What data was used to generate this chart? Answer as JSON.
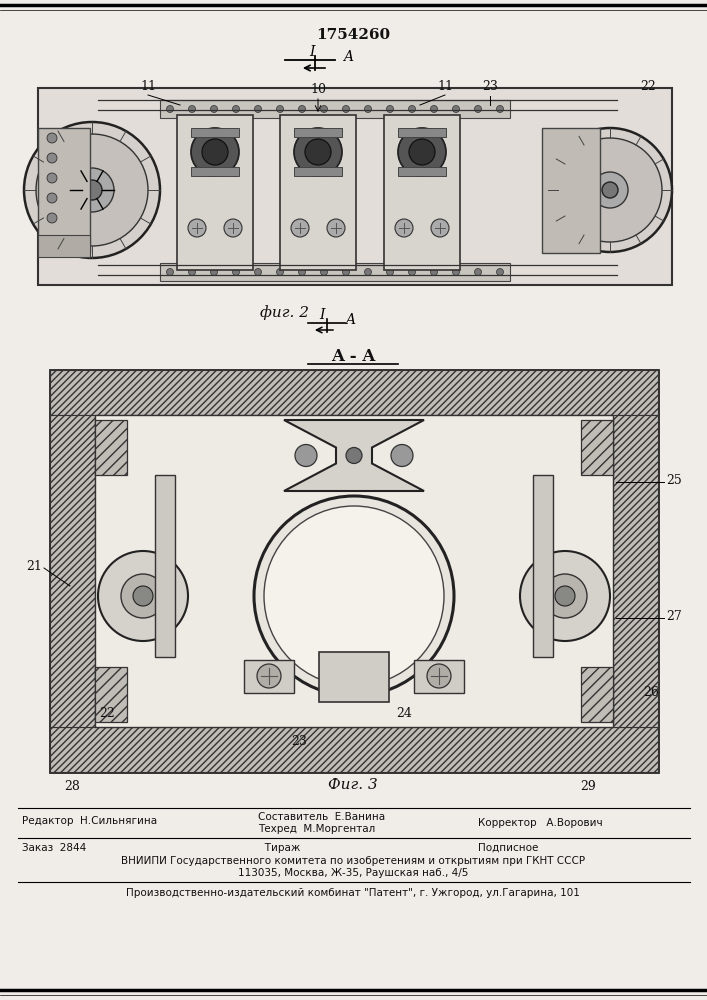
{
  "patent_number": "1754260",
  "fig2_label": "фиг. 2",
  "fig3_label": "Фиг. 3",
  "section_label": "A - A",
  "background_color": "#f0ede8",
  "border_color": "#222222",
  "editor_line": "Редактор  Н.Сильнягина",
  "composer_line1": "Составитель  Е.Ванина",
  "composer_line2": "Техред  М.Моргентал",
  "corrector_line": "Корректор   А.Ворович",
  "order_line": "Заказ  2844",
  "circulation_line": "   Тираж",
  "subscription_line": "Подписное",
  "vniiipi_line1": "ВНИИПИ Государственного комитета по изобретениям и открытиям при ГКНТ СССР",
  "vniiipi_line2": "113035, Москва, Ж-35, Раушская наб., 4/5",
  "production_line": "Производственно-издательский комбинат \"Патент\", г. Ужгород, ул.Гагарина, 101"
}
